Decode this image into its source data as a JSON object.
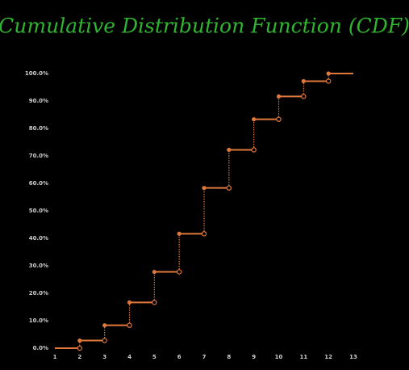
{
  "chart_data": {
    "type": "step",
    "title": "Cumulative Distribution Function (CDF)",
    "x": [
      1,
      2,
      3,
      4,
      5,
      6,
      7,
      8,
      9,
      10,
      11,
      12
    ],
    "series": [
      {
        "color": "#e0783c",
        "values": [
          0,
          2.78,
          8.33,
          16.67,
          27.78,
          41.67,
          58.33,
          72.22,
          83.33,
          91.67,
          97.22,
          100
        ]
      }
    ],
    "xlim": [
      1,
      13
    ],
    "xticks": [
      1,
      2,
      3,
      4,
      5,
      6,
      7,
      8,
      9,
      10,
      11,
      12,
      13
    ],
    "ylim": [
      0,
      100
    ],
    "yticks": [
      {
        "value": 0,
        "label": "0.0%"
      },
      {
        "value": 10,
        "label": "10.0%"
      },
      {
        "value": 20,
        "label": "20.0%"
      },
      {
        "value": 30,
        "label": "30.0%"
      },
      {
        "value": 40,
        "label": "40.0%"
      },
      {
        "value": 50,
        "label": "50.0%"
      },
      {
        "value": 60,
        "label": "60.0%"
      },
      {
        "value": 70,
        "label": "70.0%"
      },
      {
        "value": 80,
        "label": "80.0%"
      },
      {
        "value": 90,
        "label": "90.0%"
      },
      {
        "value": 100,
        "label": "100.0%"
      }
    ],
    "title_color": "#2fb52f"
  }
}
